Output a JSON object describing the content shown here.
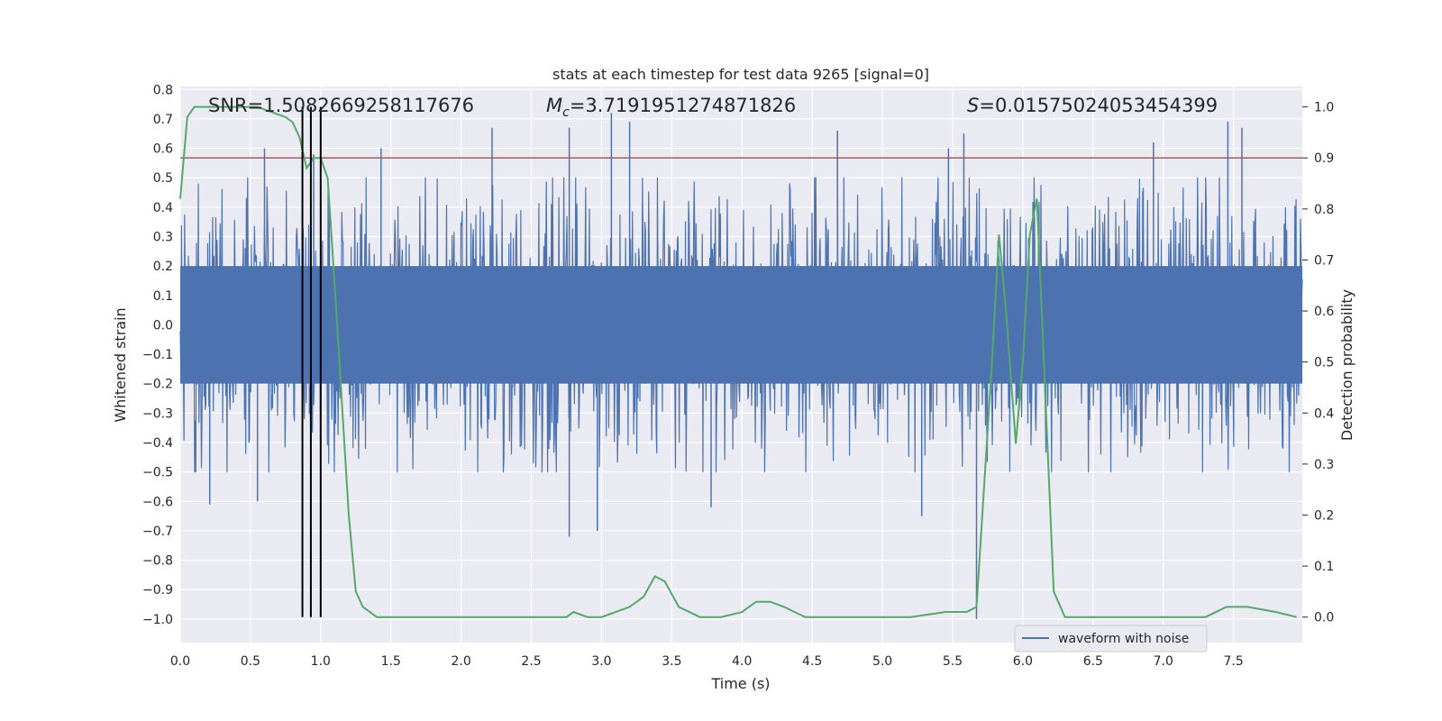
{
  "chart_data": {
    "type": "line",
    "title": "stats at each timestep for test data 9265 [signal=0]",
    "xlabel": "Time (s)",
    "ylabel_left": "Whitened strain",
    "ylabel_right": "Detection probability",
    "xlim": [
      0.0,
      7.99
    ],
    "ylim_left": [
      -1.08,
      0.81
    ],
    "ylim_right": [
      -0.05,
      1.04
    ],
    "x_ticks": [
      "0.0",
      "0.5",
      "1.0",
      "1.5",
      "2.0",
      "2.5",
      "3.0",
      "3.5",
      "4.0",
      "4.5",
      "5.0",
      "5.5",
      "6.0",
      "6.5",
      "7.0",
      "7.5"
    ],
    "y_left_ticks": [
      "0.8",
      "0.7",
      "0.6",
      "0.5",
      "0.4",
      "0.3",
      "0.2",
      "0.1",
      "0.0",
      "−0.1",
      "−0.2",
      "−0.3",
      "−0.4",
      "−0.5",
      "−0.6",
      "−0.7",
      "−0.8",
      "−0.9",
      "−1.0"
    ],
    "y_right_ticks": [
      "1.0",
      "0.9",
      "0.8",
      "0.7",
      "0.6",
      "0.5",
      "0.4",
      "0.3",
      "0.2",
      "0.1",
      "0.0"
    ],
    "grid": true,
    "legend_placement": "lower-right",
    "annotations": {
      "snr": "SNR=1.5082669258117676",
      "mc_symbol": "M",
      "mc_subscript": "c",
      "mc_value": "=3.7191951274871826",
      "s_symbol": "S",
      "s_value": "=0.01575024053454399"
    },
    "series": [
      {
        "name": "waveform with noise",
        "axis": "left",
        "color": "#4c72b0",
        "noise_typical_max": 0.4,
        "noise_typical_min": -0.4,
        "spikes": [
          {
            "t": 0.6,
            "v": 0.6
          },
          {
            "t": 0.95,
            "v": 0.58
          },
          {
            "t": 1.43,
            "v": 0.6
          },
          {
            "t": 2.22,
            "v": 0.67
          },
          {
            "t": 2.77,
            "v": 0.67
          },
          {
            "t": 3.07,
            "v": 0.72
          },
          {
            "t": 3.2,
            "v": 0.69
          },
          {
            "t": 4.68,
            "v": 0.66
          },
          {
            "t": 5.47,
            "v": 0.6
          },
          {
            "t": 5.58,
            "v": 0.65
          },
          {
            "t": 6.93,
            "v": 0.62
          },
          {
            "t": 7.46,
            "v": 0.69
          },
          {
            "t": 7.56,
            "v": 0.67
          },
          {
            "t": 0.21,
            "v": -0.61
          },
          {
            "t": 0.55,
            "v": -0.6
          },
          {
            "t": 2.77,
            "v": -0.72
          },
          {
            "t": 2.97,
            "v": -0.7
          },
          {
            "t": 3.78,
            "v": -0.62
          },
          {
            "t": 5.67,
            "v": -1.0
          },
          {
            "t": 5.28,
            "v": -0.65
          }
        ]
      },
      {
        "name": "",
        "axis": "right",
        "color": "#55a868",
        "points": [
          [
            0.0,
            0.82
          ],
          [
            0.05,
            0.98
          ],
          [
            0.1,
            1.0
          ],
          [
            0.3,
            1.0
          ],
          [
            0.55,
            1.0
          ],
          [
            0.65,
            0.99
          ],
          [
            0.75,
            0.98
          ],
          [
            0.8,
            0.97
          ],
          [
            0.85,
            0.94
          ],
          [
            0.9,
            0.88
          ],
          [
            0.95,
            0.9
          ],
          [
            1.0,
            0.9
          ],
          [
            1.05,
            0.86
          ],
          [
            1.1,
            0.65
          ],
          [
            1.2,
            0.2
          ],
          [
            1.25,
            0.05
          ],
          [
            1.3,
            0.02
          ],
          [
            1.4,
            0.0
          ],
          [
            1.6,
            0.0
          ],
          [
            2.5,
            0.0
          ],
          [
            2.75,
            0.0
          ],
          [
            2.8,
            0.01
          ],
          [
            2.9,
            0.0
          ],
          [
            3.0,
            0.0
          ],
          [
            3.1,
            0.01
          ],
          [
            3.2,
            0.02
          ],
          [
            3.3,
            0.04
          ],
          [
            3.38,
            0.08
          ],
          [
            3.45,
            0.07
          ],
          [
            3.55,
            0.02
          ],
          [
            3.7,
            0.0
          ],
          [
            3.85,
            0.0
          ],
          [
            4.0,
            0.01
          ],
          [
            4.1,
            0.03
          ],
          [
            4.2,
            0.03
          ],
          [
            4.3,
            0.02
          ],
          [
            4.45,
            0.0
          ],
          [
            4.6,
            0.0
          ],
          [
            5.2,
            0.0
          ],
          [
            5.45,
            0.01
          ],
          [
            5.6,
            0.01
          ],
          [
            5.67,
            0.02
          ],
          [
            5.78,
            0.5
          ],
          [
            5.83,
            0.75
          ],
          [
            5.88,
            0.6
          ],
          [
            5.95,
            0.34
          ],
          [
            6.0,
            0.5
          ],
          [
            6.05,
            0.75
          ],
          [
            6.1,
            0.82
          ],
          [
            6.15,
            0.5
          ],
          [
            6.22,
            0.05
          ],
          [
            6.3,
            0.0
          ],
          [
            6.4,
            0.0
          ],
          [
            7.3,
            0.0
          ],
          [
            7.45,
            0.02
          ],
          [
            7.6,
            0.02
          ],
          [
            7.8,
            0.01
          ],
          [
            7.95,
            0.0
          ]
        ]
      }
    ],
    "hlines": [
      {
        "axis": "right",
        "value": 0.9,
        "color": "#c44e52"
      }
    ],
    "vlines": [
      {
        "x": 0.87,
        "color": "#000000"
      },
      {
        "x": 0.93,
        "color": "#000000"
      },
      {
        "x": 1.0,
        "color": "#000000"
      }
    ]
  }
}
